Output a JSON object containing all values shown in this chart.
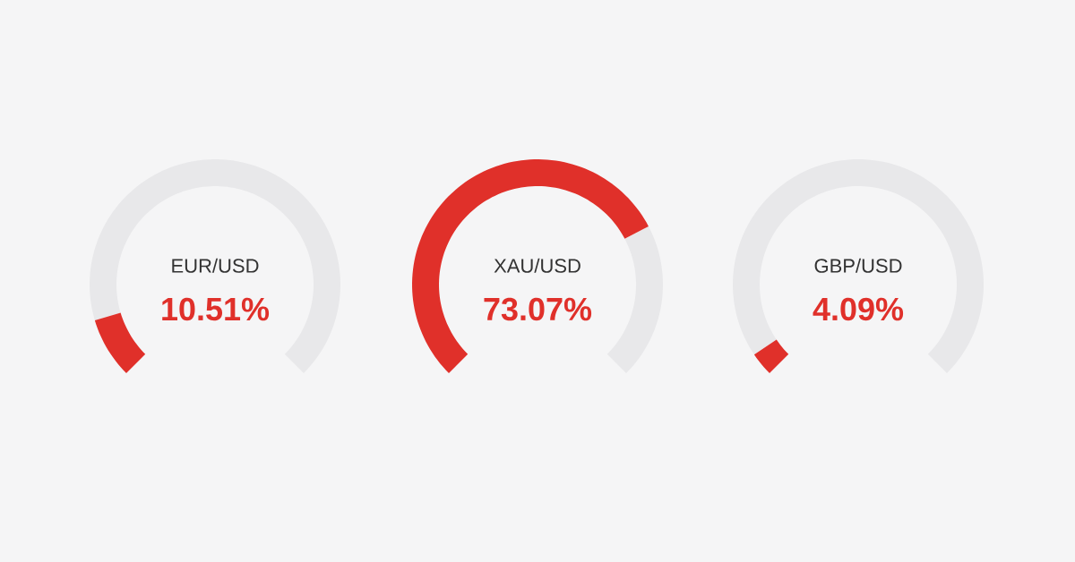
{
  "chart_data": [
    {
      "type": "donut",
      "title": "EUR/USD",
      "categories": [
        null,
        null
      ],
      "values": [
        10.51,
        89.49
      ],
      "annotations": [
        "10.51%"
      ],
      "colors": [
        "#e0302a",
        "#e8e8ea"
      ]
    },
    {
      "type": "donut",
      "title": "XAU/USD",
      "categories": [
        null,
        null
      ],
      "values": [
        73.07,
        26.93
      ],
      "annotations": [
        "73.07%"
      ],
      "colors": [
        "#e0302a",
        "#e8e8ea"
      ]
    },
    {
      "type": "donut",
      "title": "GBP/USD",
      "categories": [
        null,
        null
      ],
      "values": [
        4.09,
        95.91
      ],
      "annotations": [
        "4.09%"
      ],
      "colors": [
        "#e0302a",
        "#e8e8ea"
      ]
    }
  ]
}
